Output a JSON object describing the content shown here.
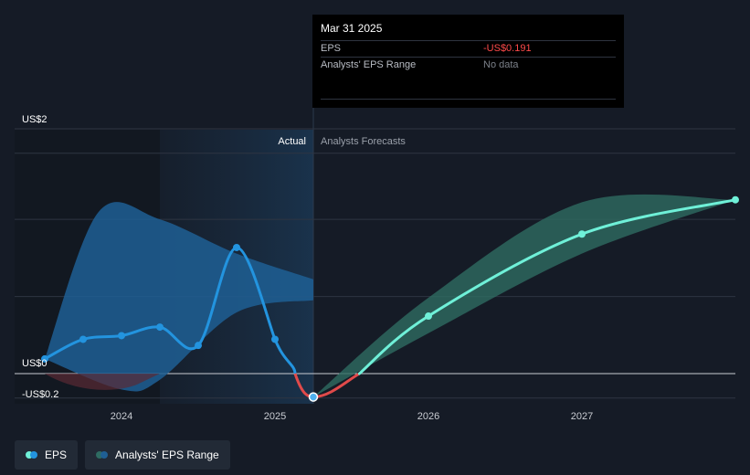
{
  "chart_data": {
    "type": "line",
    "y_axis_labels": [
      "US$2",
      "US$0",
      "-US$0.2"
    ],
    "x_axis_labels": [
      "2024",
      "2025",
      "2026",
      "2027"
    ],
    "ylim": [
      -0.2,
      2.0
    ],
    "region_labels": {
      "actual": "Actual",
      "forecast": "Analysts Forecasts"
    },
    "series": [
      {
        "name": "EPS",
        "type": "actual",
        "points": [
          {
            "x": 2023.5,
            "y": 0.12
          },
          {
            "x": 2023.75,
            "y": 0.28
          },
          {
            "x": 2024.0,
            "y": 0.31
          },
          {
            "x": 2024.25,
            "y": 0.38
          },
          {
            "x": 2024.5,
            "y": 0.23
          },
          {
            "x": 2024.75,
            "y": 1.03
          },
          {
            "x": 2025.0,
            "y": 0.28
          },
          {
            "x": 2025.25,
            "y": -0.191
          }
        ]
      },
      {
        "name": "Analysts' EPS Range",
        "type": "forecast",
        "points": [
          {
            "x": 2025.25,
            "y": -0.191
          },
          {
            "x": 2026.0,
            "y": 0.47
          },
          {
            "x": 2027.0,
            "y": 1.14
          },
          {
            "x": 2028.0,
            "y": 1.42
          }
        ],
        "range_high": [
          {
            "x": 2025.25,
            "y": -0.191
          },
          {
            "x": 2026.0,
            "y": 0.62
          },
          {
            "x": 2027.0,
            "y": 1.4
          },
          {
            "x": 2028.0,
            "y": 1.42
          }
        ],
        "range_low": [
          {
            "x": 2025.25,
            "y": -0.191
          },
          {
            "x": 2026.0,
            "y": 0.33
          },
          {
            "x": 2027.0,
            "y": 0.98
          },
          {
            "x": 2028.0,
            "y": 1.42
          }
        ]
      }
    ],
    "actual_range_high": [
      {
        "x": 2023.5,
        "y": 0.12
      },
      {
        "x": 2023.85,
        "y": 1.32
      },
      {
        "x": 2024.25,
        "y": 1.26
      },
      {
        "x": 2024.75,
        "y": 0.98
      },
      {
        "x": 2025.25,
        "y": 0.77
      }
    ],
    "actual_range_low": [
      {
        "x": 2023.5,
        "y": 0.12
      },
      {
        "x": 2024.0,
        "y": -0.13
      },
      {
        "x": 2024.25,
        "y": -0.05
      },
      {
        "x": 2024.75,
        "y": 0.5
      },
      {
        "x": 2025.25,
        "y": 0.6
      }
    ],
    "colors": {
      "eps_line": "#2394df",
      "eps_negative": "#e04a4a",
      "forecast_line": "#6ff0d8",
      "forecast_band": "#2e6b62",
      "actual_band": "#1f5f94",
      "gridline": "#2e3542"
    }
  },
  "tooltip": {
    "date": "Mar 31 2025",
    "eps_label": "EPS",
    "eps_value": "-US$0.191",
    "range_label": "Analysts' EPS Range",
    "range_value": "No data"
  },
  "legend": {
    "eps": "EPS",
    "range": "Analysts' EPS Range"
  }
}
